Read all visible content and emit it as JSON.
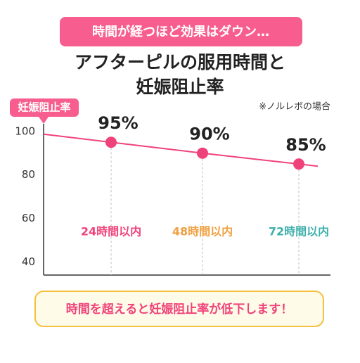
{
  "chart_data": {
    "type": "line",
    "banner": "時間が経つほど効果はダウン…",
    "title": [
      "アフターピルの服用時間と",
      "妊娠阻止率"
    ],
    "y_label": "妊娠阻止率",
    "note": "※ノルレボの場合",
    "callout": "時間を超えると妊娠阻止率が低下します！",
    "categories": [
      "24時間以内",
      "48時間以内",
      "72時間以内"
    ],
    "category_colors": [
      "#f0427a",
      "#f0a040",
      "#3fb0ad"
    ],
    "series": [
      {
        "name": "妊娠阻止率",
        "color": "#f0427a",
        "values": [
          95,
          90,
          85
        ],
        "value_labels": [
          "95%",
          "90%",
          "85%"
        ]
      }
    ],
    "ylim": [
      34,
      108
    ],
    "yticks": [
      40,
      60,
      80,
      100
    ]
  }
}
